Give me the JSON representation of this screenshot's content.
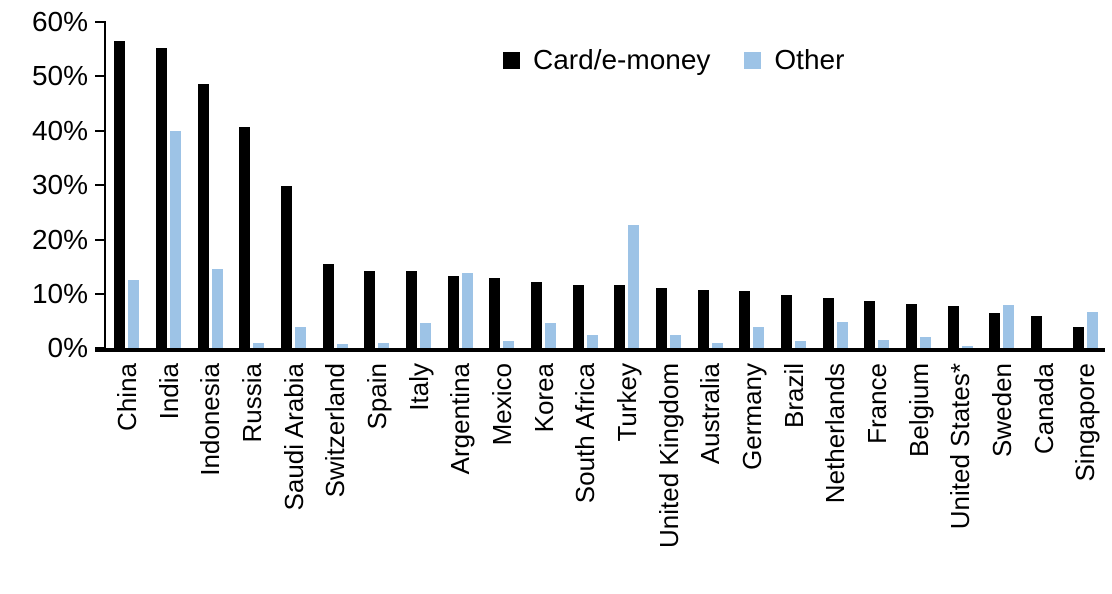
{
  "chart_data": {
    "type": "bar",
    "title": "",
    "xlabel": "",
    "ylabel": "",
    "ylim": [
      0,
      60
    ],
    "ytick_labels": [
      "0%",
      "10%",
      "20%",
      "30%",
      "40%",
      "50%",
      "60%"
    ],
    "grid": false,
    "legend_position": "top-center",
    "categories": [
      "China",
      "India",
      "Indonesia",
      "Russia",
      "Saudi Arabia",
      "Switzerland",
      "Spain",
      "Italy",
      "Argentina",
      "Mexico",
      "Korea",
      "South Africa",
      "Turkey",
      "United Kingdom",
      "Australia",
      "Germany",
      "Brazil",
      "Netherlands",
      "France",
      "Belgium",
      "United States*",
      "Sweden",
      "Canada",
      "Singapore"
    ],
    "series": [
      {
        "name": "Card/e-money",
        "color": "#000000",
        "values": [
          56.3,
          55.0,
          48.4,
          40.6,
          29.8,
          15.5,
          14.2,
          14.1,
          13.3,
          12.9,
          12.2,
          11.6,
          11.5,
          11.0,
          10.7,
          10.5,
          9.8,
          9.2,
          8.6,
          8.1,
          7.8,
          6.5,
          5.9,
          3.8
        ]
      },
      {
        "name": "Other",
        "color": "#9DC3E6",
        "values": [
          12.4,
          39.8,
          14.5,
          0.9,
          3.8,
          0.7,
          0.9,
          4.6,
          13.8,
          1.3,
          4.5,
          2.4,
          22.5,
          2.3,
          0.9,
          3.8,
          1.2,
          4.7,
          1.5,
          2.0,
          0.3,
          7.9,
          0.0,
          6.6
        ]
      }
    ]
  },
  "legend": {
    "card_label": "Card/e-money",
    "other_label": "Other"
  },
  "colors": {
    "card_series": "#000000",
    "other_series": "#9DC3E6",
    "axis": "#000000",
    "background": "#ffffff"
  }
}
